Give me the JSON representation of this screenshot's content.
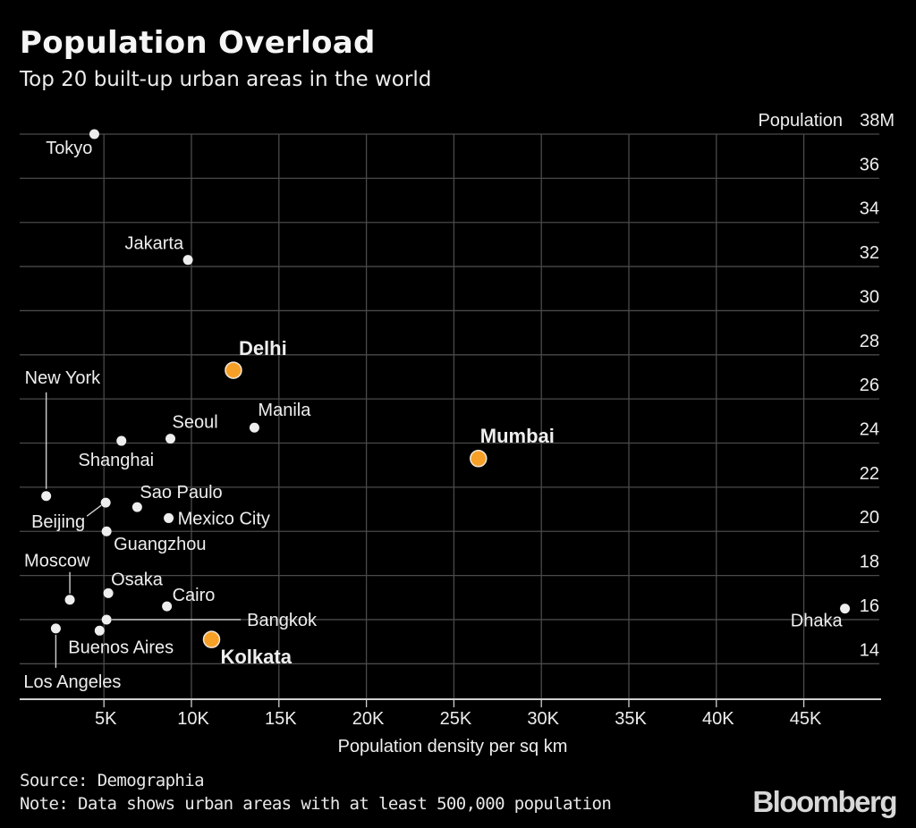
{
  "header": {
    "title": "Population Overload",
    "subtitle": "Top 20 built-up urban areas in the world"
  },
  "footer": {
    "source": "Source: Demographia",
    "note": "Note: Data shows urban areas with at least 500,000 population",
    "logo": "Bloomberg"
  },
  "colors": {
    "background": "#000000",
    "grid": "#4a4a4a",
    "axis": "#d0d0d0",
    "dot": "#eeeeee",
    "highlight": "#f7a028",
    "text": "#eeeeee"
  },
  "chart_data": {
    "type": "scatter",
    "title": "Population Overload",
    "subtitle": "Top 20 built-up urban areas in the world",
    "xlabel": "Population density per sq km",
    "ylabel": "Population",
    "xlim": [
      0,
      49000
    ],
    "ylim": [
      12.5,
      38
    ],
    "grid": true,
    "x_ticks": [
      5000,
      10000,
      15000,
      20000,
      25000,
      30000,
      35000,
      40000,
      45000
    ],
    "x_tick_labels": [
      "5K",
      "10K",
      "15K",
      "20K",
      "25K",
      "30K",
      "35K",
      "40K",
      "45K"
    ],
    "y_ticks": [
      14,
      16,
      18,
      20,
      22,
      24,
      26,
      28,
      30,
      32,
      34,
      36,
      38
    ],
    "y_tick_labels": [
      "14",
      "16",
      "18",
      "20",
      "22",
      "24",
      "26",
      "28",
      "30",
      "32",
      "34",
      "36",
      "38M"
    ],
    "y_axis_title_inline": "Population",
    "points": [
      {
        "name": "Tokyo",
        "x": 4450,
        "y": 38.0,
        "highlight": false
      },
      {
        "name": "Jakarta",
        "x": 9800,
        "y": 32.3,
        "highlight": false
      },
      {
        "name": "Delhi",
        "x": 12400,
        "y": 27.3,
        "highlight": true
      },
      {
        "name": "Manila",
        "x": 13600,
        "y": 24.7,
        "highlight": false
      },
      {
        "name": "Seoul",
        "x": 8800,
        "y": 24.2,
        "highlight": false
      },
      {
        "name": "Shanghai",
        "x": 6000,
        "y": 24.1,
        "highlight": false
      },
      {
        "name": "Mumbai",
        "x": 26400,
        "y": 23.3,
        "highlight": true
      },
      {
        "name": "New York",
        "x": 1700,
        "y": 21.6,
        "highlight": false
      },
      {
        "name": "Beijing",
        "x": 5100,
        "y": 21.3,
        "highlight": false
      },
      {
        "name": "Sao Paulo",
        "x": 6900,
        "y": 21.1,
        "highlight": false
      },
      {
        "name": "Mexico City",
        "x": 8700,
        "y": 20.6,
        "highlight": false
      },
      {
        "name": "Guangzhou",
        "x": 5150,
        "y": 20.0,
        "highlight": false
      },
      {
        "name": "Osaka",
        "x": 5250,
        "y": 17.2,
        "highlight": false
      },
      {
        "name": "Moscow",
        "x": 3050,
        "y": 16.9,
        "highlight": false
      },
      {
        "name": "Cairo",
        "x": 8600,
        "y": 16.6,
        "highlight": false
      },
      {
        "name": "Dhaka",
        "x": 47350,
        "y": 16.5,
        "highlight": false
      },
      {
        "name": "Bangkok",
        "x": 5150,
        "y": 16.0,
        "highlight": false
      },
      {
        "name": "Los Angeles",
        "x": 2250,
        "y": 15.6,
        "highlight": false
      },
      {
        "name": "Buenos Aires",
        "x": 4750,
        "y": 15.5,
        "highlight": false
      },
      {
        "name": "Kolkata",
        "x": 11150,
        "y": 15.1,
        "highlight": true
      }
    ]
  }
}
